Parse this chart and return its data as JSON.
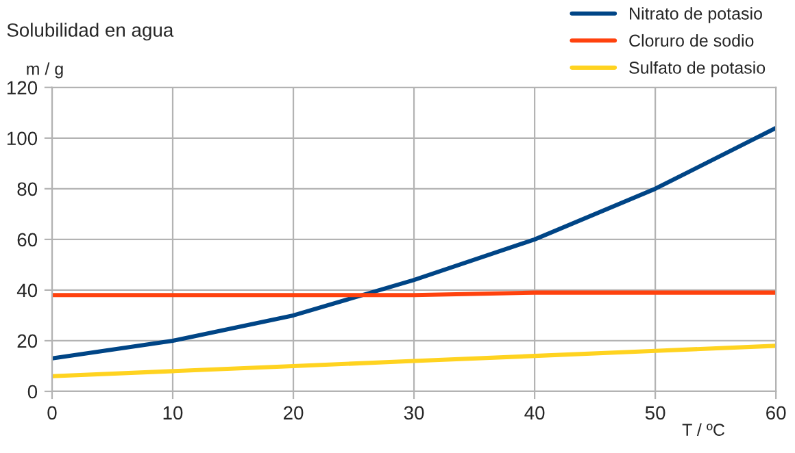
{
  "chart_data": {
    "type": "line",
    "title": "Solubilidad en agua",
    "ylabel": "m / g",
    "xlabel": "T / ºC",
    "x": [
      0,
      10,
      20,
      30,
      40,
      50,
      60
    ],
    "series": [
      {
        "name": "Nitrato de potasio",
        "color": "#004586",
        "values": [
          13,
          20,
          30,
          44,
          60,
          80,
          104
        ]
      },
      {
        "name": "Cloruro de sodio",
        "color": "#ff420e",
        "values": [
          38,
          38,
          38,
          38,
          39,
          39,
          39
        ]
      },
      {
        "name": "Sulfato de potasio",
        "color": "#ffd320",
        "values": [
          6,
          8,
          10,
          12,
          14,
          16,
          18
        ]
      }
    ],
    "xlim": [
      0,
      60
    ],
    "xticks": [
      0,
      10,
      20,
      30,
      40,
      50,
      60
    ],
    "ylim": [
      0,
      120
    ],
    "yticks": [
      0,
      20,
      40,
      60,
      80,
      100,
      120
    ],
    "grid": true,
    "legend": "top right",
    "marker": "none",
    "line_style": "solid"
  }
}
